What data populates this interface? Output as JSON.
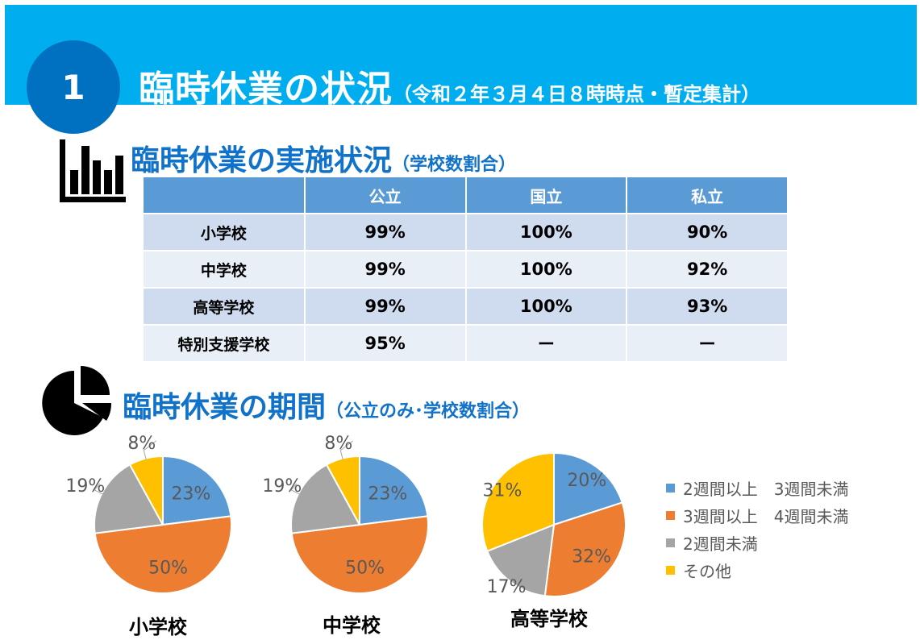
{
  "header": {
    "number": "1",
    "title": "臨時休業の状況",
    "subtitle": "（令和２年３月４日８時時点・暫定集計）"
  },
  "section1": {
    "title": "臨時休業の実施状況",
    "subtitle": "（学校数割合）"
  },
  "table": {
    "columns": [
      "",
      "公立",
      "国立",
      "私立"
    ],
    "rows": [
      {
        "label": "小学校",
        "values": [
          "99%",
          "100%",
          "90%"
        ]
      },
      {
        "label": "中学校",
        "values": [
          "99%",
          "100%",
          "92%"
        ]
      },
      {
        "label": "高等学校",
        "values": [
          "99%",
          "100%",
          "93%"
        ]
      },
      {
        "label": "特別支援学校",
        "values": [
          "95%",
          "ー",
          "ー"
        ]
      }
    ]
  },
  "section2": {
    "title": "臨時休業の期間",
    "subtitle": "（公立のみ･学校数割合）"
  },
  "colors": {
    "banner": "#00adef",
    "circle": "#0070c0",
    "title_blue": "#1172c9"
  },
  "chart_data": [
    {
      "type": "pie",
      "title": "小学校",
      "categories": [
        "2週間以上　3週間未満",
        "3週間以上　4週間未満",
        "2週間未満",
        "その他"
      ],
      "values": [
        23,
        50,
        19,
        8
      ],
      "labels": [
        "23%",
        "50%",
        "19%",
        "8%"
      ],
      "colors": [
        "#5b9bd5",
        "#ed7d31",
        "#a5a5a5",
        "#ffc000"
      ]
    },
    {
      "type": "pie",
      "title": "中学校",
      "categories": [
        "2週間以上　3週間未満",
        "3週間以上　4週間未満",
        "2週間未満",
        "その他"
      ],
      "values": [
        23,
        50,
        19,
        8
      ],
      "labels": [
        "23%",
        "50%",
        "19%",
        "8%"
      ],
      "colors": [
        "#5b9bd5",
        "#ed7d31",
        "#a5a5a5",
        "#ffc000"
      ]
    },
    {
      "type": "pie",
      "title": "高等学校",
      "categories": [
        "2週間以上　3週間未満",
        "3週間以上　4週間未満",
        "2週間未満",
        "その他"
      ],
      "values": [
        20,
        32,
        17,
        31
      ],
      "labels": [
        "20%",
        "32%",
        "17%",
        "31%"
      ],
      "colors": [
        "#5b9bd5",
        "#ed7d31",
        "#a5a5a5",
        "#ffc000"
      ]
    }
  ],
  "legend": [
    {
      "label": "2週間以上　3週間未満",
      "color": "#5b9bd5"
    },
    {
      "label": "3週間以上　4週間未満",
      "color": "#ed7d31"
    },
    {
      "label": "2週間未満",
      "color": "#a5a5a5"
    },
    {
      "label": "その他",
      "color": "#ffc000"
    }
  ]
}
